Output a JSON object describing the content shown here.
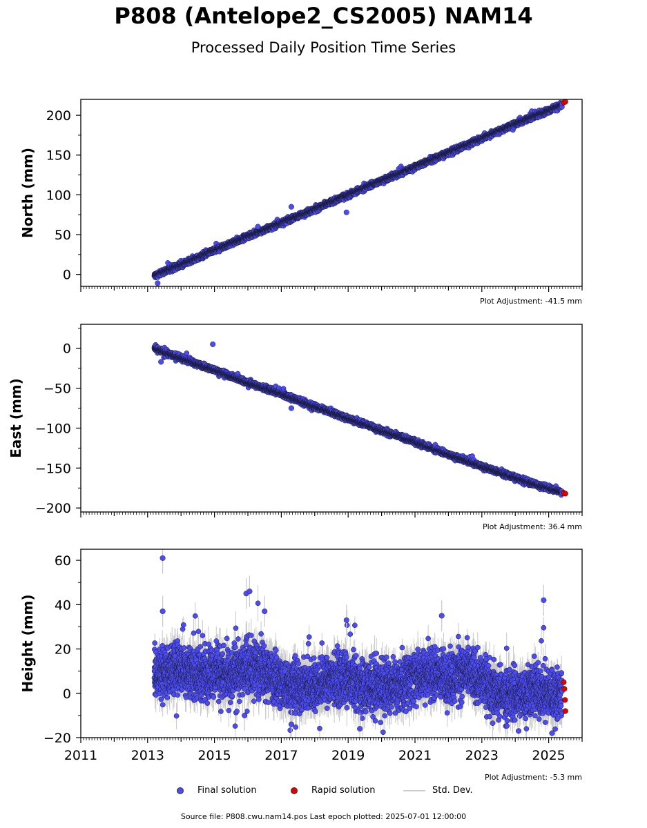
{
  "header": {
    "title": "P808 (Antelope2_CS2005) NAM14",
    "subtitle": "Processed Daily Position Time Series"
  },
  "legend": {
    "final_label": "Final solution",
    "rapid_label": "Rapid solution",
    "std_label": "Std. Dev.",
    "final_color": "#4c4cf0",
    "rapid_color": "#e00000",
    "std_color": "#c8c8c8"
  },
  "footer": {
    "source": "Source file: P808.cwu.nam14.pos  Last epoch plotted: 2025-07-01 12:00:00"
  },
  "chart_data": [
    {
      "type": "scatter",
      "ylabel": "North (mm)",
      "xlabel": "",
      "ylim": [
        -15,
        220
      ],
      "xlim": [
        2011,
        2026
      ],
      "yticks": [
        0,
        50,
        100,
        150,
        200
      ],
      "xticks": [
        2011,
        2013,
        2015,
        2017,
        2019,
        2021,
        2023,
        2025
      ],
      "show_x_tick_labels": false,
      "adjustment": "Plot Adjustment: -41.5 mm",
      "series": [
        {
          "name": "Final solution",
          "x": [
            2013.2,
            2013.5,
            2014.0,
            2014.5,
            2015.0,
            2015.5,
            2016.0,
            2016.5,
            2017.0,
            2017.5,
            2018.0,
            2018.5,
            2019.0,
            2019.5,
            2020.0,
            2020.5,
            2021.0,
            2021.5,
            2022.0,
            2022.5,
            2023.0,
            2023.5,
            2024.0,
            2024.5,
            2025.0,
            2025.4
          ],
          "values": [
            -2,
            4,
            12,
            21,
            30,
            39,
            48,
            56,
            65,
            73,
            82,
            91,
            100,
            109,
            118,
            126,
            135,
            144,
            153,
            162,
            171,
            180,
            189,
            198,
            206,
            213
          ],
          "outliers": [
            {
              "x": 2013.3,
              "y": -11
            },
            {
              "x": 2017.3,
              "y": 85
            },
            {
              "x": 2018.95,
              "y": 78
            },
            {
              "x": 2016.3,
              "y": 60
            }
          ]
        },
        {
          "name": "Rapid solution",
          "x": [
            2025.45,
            2025.5
          ],
          "values": [
            216,
            217
          ]
        }
      ]
    },
    {
      "type": "scatter",
      "ylabel": "East (mm)",
      "xlabel": "",
      "ylim": [
        -205,
        30
      ],
      "xlim": [
        2011,
        2026
      ],
      "yticks": [
        -200,
        -150,
        -100,
        -50,
        0
      ],
      "xticks": [
        2011,
        2013,
        2015,
        2017,
        2019,
        2021,
        2023,
        2025
      ],
      "show_x_tick_labels": false,
      "adjustment": "Plot Adjustment: 36.4 mm",
      "series": [
        {
          "name": "Final solution",
          "x": [
            2013.2,
            2013.5,
            2014.0,
            2014.5,
            2015.0,
            2015.5,
            2016.0,
            2016.5,
            2017.0,
            2017.5,
            2018.0,
            2018.5,
            2019.0,
            2019.5,
            2020.0,
            2020.5,
            2021.0,
            2021.5,
            2022.0,
            2022.5,
            2023.0,
            2023.5,
            2024.0,
            2024.5,
            2025.0,
            2025.4
          ],
          "values": [
            0,
            -5,
            -12,
            -20,
            -27,
            -35,
            -43,
            -50,
            -57,
            -65,
            -73,
            -80,
            -88,
            -95,
            -103,
            -110,
            -117,
            -125,
            -133,
            -140,
            -148,
            -155,
            -162,
            -169,
            -175,
            -180
          ],
          "outliers": [
            {
              "x": 2014.95,
              "y": 5
            },
            {
              "x": 2013.4,
              "y": -17
            },
            {
              "x": 2017.3,
              "y": -75
            }
          ]
        },
        {
          "name": "Rapid solution",
          "x": [
            2025.45,
            2025.5
          ],
          "values": [
            -181,
            -182
          ]
        }
      ]
    },
    {
      "type": "scatter",
      "ylabel": "Height (mm)",
      "xlabel": "",
      "ylim": [
        -20,
        65
      ],
      "xlim": [
        2011,
        2026
      ],
      "yticks": [
        -20,
        0,
        20,
        40,
        60
      ],
      "xticks": [
        2011,
        2013,
        2015,
        2017,
        2019,
        2021,
        2023,
        2025
      ],
      "xtick_labels": [
        "2011",
        "2013",
        "2015",
        "2017",
        "2019",
        "2021",
        "2023",
        "2025"
      ],
      "show_x_tick_labels": true,
      "adjustment": "Plot Adjustment: -5.3 mm",
      "series": [
        {
          "name": "Final solution",
          "x": [
            2013.2,
            2013.5,
            2014.0,
            2014.5,
            2015.0,
            2015.5,
            2016.0,
            2016.5,
            2017.0,
            2017.5,
            2018.0,
            2018.5,
            2019.0,
            2019.5,
            2020.0,
            2020.5,
            2021.0,
            2021.5,
            2022.0,
            2022.5,
            2023.0,
            2023.5,
            2024.0,
            2024.5,
            2025.0,
            2025.4
          ],
          "values": [
            8,
            10,
            12,
            9,
            10,
            7,
            13,
            10,
            5,
            3,
            4,
            7,
            6,
            3,
            4,
            3,
            8,
            9,
            7,
            10,
            6,
            0,
            -1,
            2,
            0,
            0
          ],
          "outliers": [
            {
              "x": 2013.45,
              "y": 61
            },
            {
              "x": 2013.45,
              "y": 37
            },
            {
              "x": 2015.95,
              "y": 45
            },
            {
              "x": 2016.05,
              "y": 46
            },
            {
              "x": 2016.5,
              "y": 37
            },
            {
              "x": 2018.95,
              "y": 33
            },
            {
              "x": 2021.8,
              "y": 35
            },
            {
              "x": 2024.85,
              "y": 42
            },
            {
              "x": 2015.9,
              "y": -10
            },
            {
              "x": 2019.35,
              "y": -16
            },
            {
              "x": 2025.1,
              "y": -18
            },
            {
              "x": 2024.1,
              "y": -17
            },
            {
              "x": 2017.3,
              "y": -14
            }
          ]
        },
        {
          "name": "Rapid solution",
          "x": [
            2025.45,
            2025.47,
            2025.49,
            2025.5
          ],
          "values": [
            5,
            2,
            -3,
            -8
          ]
        }
      ]
    }
  ]
}
